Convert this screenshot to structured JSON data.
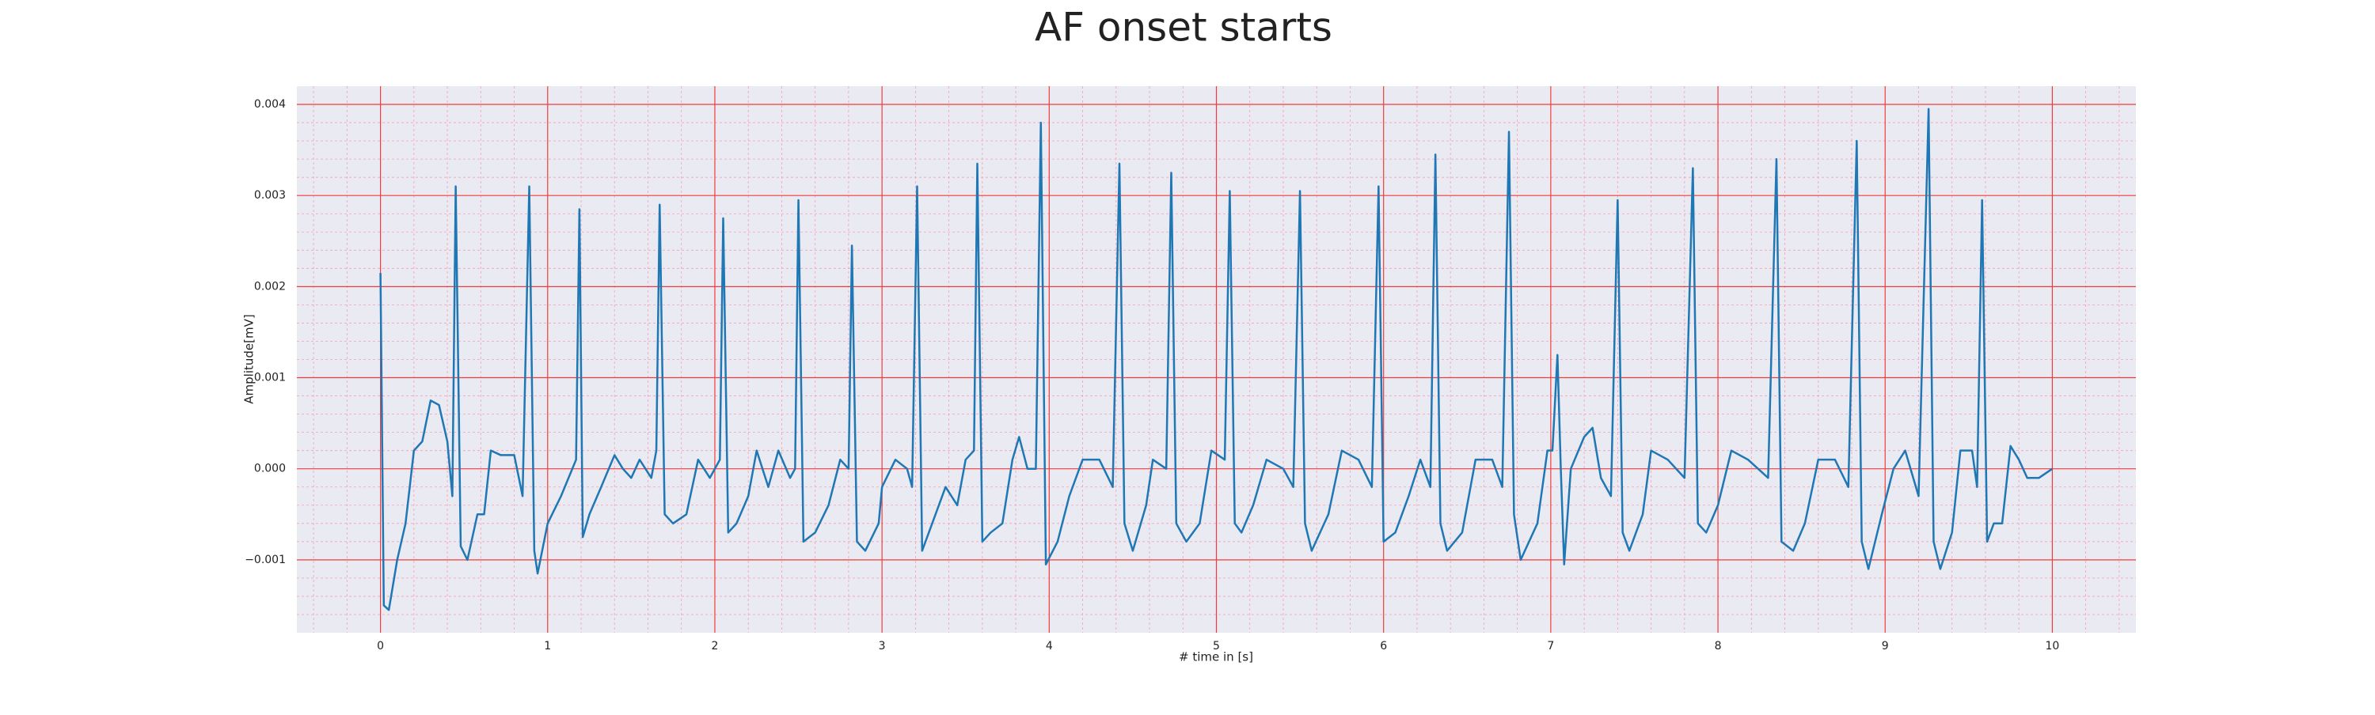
{
  "chart_data": {
    "type": "line",
    "title": "AF onset starts",
    "xlabel": "# time in [s]",
    "ylabel": "Amplitude[mV]",
    "color": "#1f77b4",
    "grid": true,
    "xlim": [
      -0.5,
      10.5
    ],
    "xticks": [
      0,
      1,
      2,
      3,
      4,
      5,
      6,
      7,
      8,
      9,
      10
    ],
    "ylim": [
      -0.0018,
      0.0042
    ],
    "yticks": [
      {
        "value": -0.001,
        "label": "−0.001"
      },
      {
        "value": 0,
        "label": "0.000"
      },
      0.001,
      0.002,
      0.003,
      0.004
    ],
    "x": [
      0,
      0.02,
      0.05,
      0.1,
      0.15,
      0.2,
      0.25,
      0.3,
      0.35,
      0.4,
      0.43,
      0.45,
      0.48,
      0.52,
      0.58,
      0.62,
      0.66,
      0.72,
      0.8,
      0.85,
      0.89,
      0.92,
      0.94,
      1.0,
      1.08,
      1.17,
      1.19,
      1.21,
      1.25,
      1.32,
      1.4,
      1.45,
      1.5,
      1.55,
      1.62,
      1.65,
      1.67,
      1.7,
      1.75,
      1.83,
      1.9,
      1.97,
      2.03,
      2.05,
      2.08,
      2.13,
      2.2,
      2.25,
      2.32,
      2.38,
      2.45,
      2.48,
      2.5,
      2.53,
      2.6,
      2.68,
      2.75,
      2.8,
      2.82,
      2.85,
      2.9,
      2.98,
      3.0,
      3.08,
      3.15,
      3.18,
      3.21,
      3.24,
      3.3,
      3.38,
      3.45,
      3.5,
      3.55,
      3.57,
      3.6,
      3.65,
      3.72,
      3.78,
      3.82,
      3.87,
      3.92,
      3.95,
      3.98,
      4.05,
      4.12,
      4.2,
      4.3,
      4.38,
      4.42,
      4.45,
      4.5,
      4.58,
      4.62,
      4.7,
      4.73,
      4.76,
      4.82,
      4.9,
      4.97,
      5.05,
      5.08,
      5.11,
      5.15,
      5.22,
      5.3,
      5.4,
      5.46,
      5.5,
      5.53,
      5.57,
      5.67,
      5.75,
      5.85,
      5.93,
      5.97,
      6.0,
      6.07,
      6.15,
      6.22,
      6.28,
      6.31,
      6.34,
      6.38,
      6.47,
      6.55,
      6.65,
      6.71,
      6.75,
      6.78,
      6.82,
      6.92,
      6.98,
      7.01,
      7.04,
      7.06,
      7.08,
      7.12,
      7.2,
      7.25,
      7.3,
      7.36,
      7.4,
      7.43,
      7.47,
      7.55,
      7.6,
      7.7,
      7.8,
      7.85,
      7.88,
      7.93,
      8.0,
      8.08,
      8.18,
      8.3,
      8.35,
      8.38,
      8.45,
      8.52,
      8.6,
      8.7,
      8.78,
      8.83,
      8.86,
      8.9,
      8.98,
      9.05,
      9.12,
      9.2,
      9.26,
      9.29,
      9.33,
      9.4,
      9.45,
      9.52,
      9.55,
      9.58,
      9.61,
      9.65,
      9.7,
      9.75,
      9.8,
      9.85,
      9.92,
      10.0
    ],
    "values": [
      0.00215,
      -0.0015,
      -0.00155,
      -0.001,
      -0.0006,
      0.0002,
      0.0003,
      0.00075,
      0.0007,
      0.0003,
      -0.0003,
      0.0031,
      -0.00085,
      -0.001,
      -0.0005,
      -0.0005,
      0.0002,
      0.00015,
      0.00015,
      -0.0003,
      0.0031,
      -0.0009,
      -0.00115,
      -0.0006,
      -0.0003,
      0.0001,
      0.00285,
      -0.00075,
      -0.0005,
      -0.0002,
      0.00015,
      0.0,
      -0.0001,
      0.0001,
      -0.0001,
      0.0002,
      0.0029,
      -0.0005,
      -0.0006,
      -0.0005,
      0.0001,
      -0.0001,
      0.0001,
      0.00275,
      -0.0007,
      -0.0006,
      -0.0003,
      0.0002,
      -0.0002,
      0.0002,
      -0.0001,
      0.0,
      0.00295,
      -0.0008,
      -0.0007,
      -0.0004,
      0.0001,
      0.0,
      0.00245,
      -0.0008,
      -0.0009,
      -0.0006,
      -0.0002,
      0.0001,
      0.0,
      -0.0002,
      0.0031,
      -0.0009,
      -0.0006,
      -0.0002,
      -0.0004,
      0.0001,
      0.0002,
      0.00335,
      -0.0008,
      -0.0007,
      -0.0006,
      0.0001,
      0.00035,
      0.0,
      0.0,
      0.0038,
      -0.00105,
      -0.0008,
      -0.0003,
      0.0001,
      0.0001,
      -0.0002,
      0.00335,
      -0.0006,
      -0.0009,
      -0.0004,
      0.0001,
      0.0,
      0.00325,
      -0.0006,
      -0.0008,
      -0.0006,
      0.0002,
      0.0001,
      0.00305,
      -0.0006,
      -0.0007,
      -0.0004,
      0.0001,
      0.0,
      -0.0002,
      0.00305,
      -0.0006,
      -0.0009,
      -0.0005,
      0.0002,
      0.0001,
      -0.0002,
      0.0031,
      -0.0008,
      -0.0007,
      -0.0003,
      0.0001,
      -0.0002,
      0.00345,
      -0.0006,
      -0.0009,
      -0.0007,
      0.0001,
      0.0001,
      -0.0002,
      0.0037,
      -0.0005,
      -0.001,
      -0.0006,
      0.0002,
      0.0002,
      0.00125,
      0.0,
      -0.00105,
      0.0,
      0.00035,
      0.00045,
      -0.0001,
      -0.0003,
      0.00295,
      -0.0007,
      -0.0009,
      -0.0005,
      0.0002,
      0.0001,
      -0.0001,
      0.0033,
      -0.0006,
      -0.0007,
      -0.0004,
      0.0002,
      0.0001,
      -0.0001,
      0.0034,
      -0.0008,
      -0.0009,
      -0.0006,
      0.0001,
      0.0001,
      -0.0002,
      0.0036,
      -0.0008,
      -0.0011,
      -0.0005,
      0.0,
      0.0002,
      -0.0003,
      0.00395,
      -0.0008,
      -0.0011,
      -0.0007,
      0.0002,
      0.0002,
      -0.0002,
      0.00295,
      -0.0008,
      -0.0006,
      -0.0006,
      0.00025,
      0.0001,
      -0.0001,
      -0.0001,
      0.0
    ]
  }
}
